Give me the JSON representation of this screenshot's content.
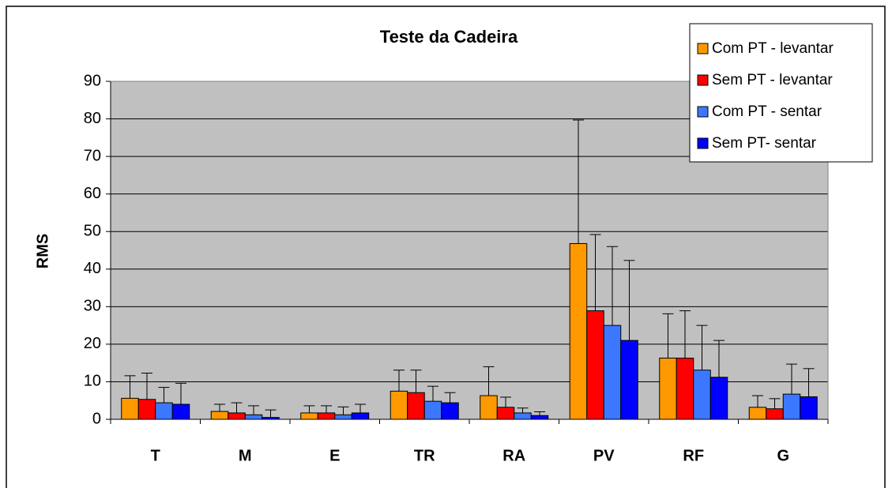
{
  "chart_data": {
    "type": "bar",
    "title": "Teste da Cadeira",
    "y_label": "RMS",
    "categories": [
      "T",
      "M",
      "E",
      "TR",
      "RA",
      "PV",
      "RF",
      "G"
    ],
    "series": [
      {
        "name": "Com PT - levantar",
        "color": "#ff9900",
        "values": [
          5.6,
          2.1,
          1.7,
          7.5,
          6.3,
          46.8,
          16.3,
          3.2
        ],
        "errors": [
          6.0,
          1.9,
          1.9,
          5.6,
          7.7,
          32.9,
          11.8,
          3.1
        ]
      },
      {
        "name": "Sem PT - levantar",
        "color": "#ff0000",
        "values": [
          5.3,
          1.7,
          1.7,
          7.1,
          3.2,
          28.9,
          16.3,
          2.8
        ],
        "errors": [
          7.0,
          2.7,
          1.9,
          6.0,
          2.7,
          20.3,
          12.6,
          2.7
        ]
      },
      {
        "name": "Com PT - sentar",
        "color": "#3c78ff",
        "values": [
          4.4,
          1.2,
          1.2,
          4.8,
          1.7,
          25.0,
          13.1,
          6.7
        ],
        "errors": [
          4.1,
          2.4,
          2.1,
          4.0,
          1.3,
          21.0,
          11.9,
          8.0
        ]
      },
      {
        "name": "Sem PT- sentar",
        "color": "#0000ff",
        "values": [
          4.0,
          0.5,
          1.7,
          4.4,
          1.0,
          21.0,
          11.2,
          6.0
        ],
        "errors": [
          5.6,
          2.0,
          2.3,
          2.7,
          1.0,
          21.3,
          9.8,
          7.5
        ]
      }
    ],
    "ylim": [
      0,
      90
    ],
    "yticks": [
      0,
      10,
      20,
      30,
      40,
      50,
      60,
      70,
      80,
      90
    ],
    "grid": true,
    "legend": "top-right"
  }
}
